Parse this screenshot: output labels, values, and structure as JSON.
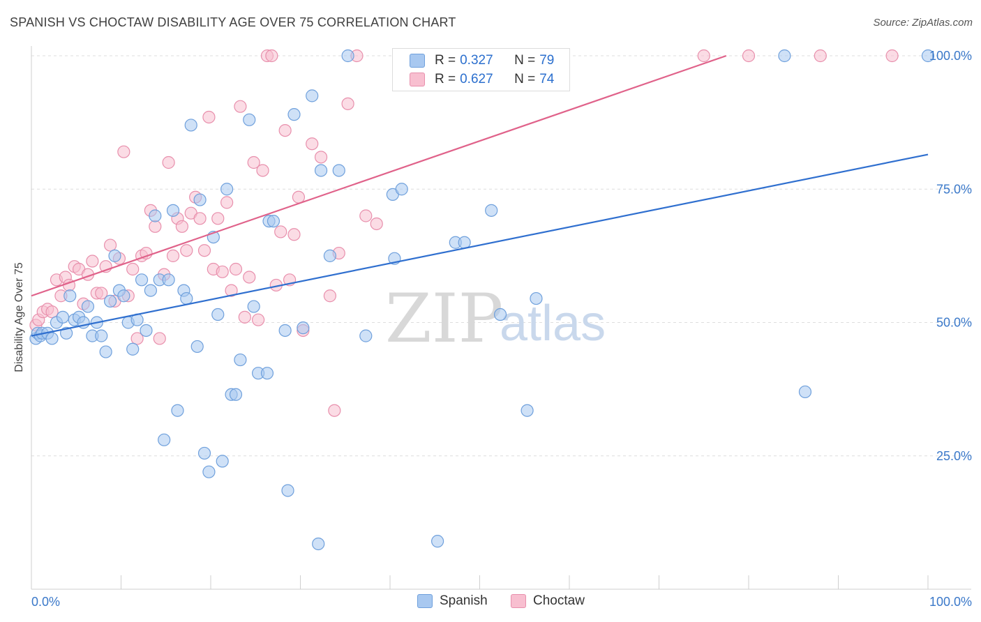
{
  "header": {
    "title": "SPANISH VS CHOCTAW DISABILITY AGE OVER 75 CORRELATION CHART",
    "source": "Source: ZipAtlas.com"
  },
  "watermark": {
    "zip": "ZIP",
    "atlas": "atlas"
  },
  "legend": {
    "rows": [
      {
        "r_label": "R = ",
        "r_value": "0.327",
        "n_label": "N = ",
        "n_value": "79",
        "color": "#a8c8f0",
        "border": "#6fa0dc"
      },
      {
        "r_label": "R = ",
        "r_value": "0.627",
        "n_label": "N = ",
        "n_value": "74",
        "color": "#f8bfd0",
        "border": "#e88fac"
      }
    ]
  },
  "bottom_legend": [
    "Spanish",
    "Choctaw"
  ],
  "colors": {
    "spanish_fill": "#a8c8f0",
    "spanish_stroke": "#6fa0dc",
    "spanish_line": "#2f6fcf",
    "choctaw_fill": "#f8bfd0",
    "choctaw_stroke": "#e88fac",
    "choctaw_line": "#e0628a",
    "tick_text": "#3a78c9"
  },
  "chart_data": {
    "type": "scatter",
    "title": "SPANISH VS CHOCTAW DISABILITY AGE OVER 75 CORRELATION CHART",
    "xlabel": "",
    "ylabel": "Disability Age Over 75",
    "xlim": [
      0,
      100
    ],
    "ylim": [
      0,
      102
    ],
    "x_tick_labels": [
      "0.0%",
      "100.0%"
    ],
    "y_ticks": [
      25,
      50,
      75,
      100
    ],
    "y_tick_labels": [
      "25.0%",
      "50.0%",
      "75.0%",
      "100.0%"
    ],
    "grid": true,
    "legend_position": "top-center",
    "series": [
      {
        "name": "Spanish",
        "r": 0.327,
        "n": 79,
        "trend": {
          "x0": 0,
          "y0": 47.5,
          "x1": 100,
          "y1": 81.5
        },
        "points": [
          [
            0.5,
            47
          ],
          [
            0.7,
            48
          ],
          [
            1.0,
            47.5
          ],
          [
            1.2,
            48
          ],
          [
            1.8,
            48
          ],
          [
            2.3,
            47
          ],
          [
            2.8,
            50
          ],
          [
            3.5,
            51
          ],
          [
            3.9,
            48
          ],
          [
            4.3,
            55
          ],
          [
            4.8,
            50.5
          ],
          [
            5.3,
            51
          ],
          [
            5.8,
            50
          ],
          [
            6.3,
            53
          ],
          [
            6.8,
            47.5
          ],
          [
            7.3,
            50
          ],
          [
            7.8,
            47.5
          ],
          [
            8.3,
            44.5
          ],
          [
            8.8,
            54
          ],
          [
            9.3,
            62.5
          ],
          [
            9.8,
            56
          ],
          [
            10.3,
            55
          ],
          [
            10.8,
            50
          ],
          [
            11.3,
            45
          ],
          [
            11.8,
            50.5
          ],
          [
            12.3,
            58
          ],
          [
            12.8,
            48.5
          ],
          [
            13.3,
            56
          ],
          [
            13.8,
            70
          ],
          [
            14.3,
            58
          ],
          [
            14.8,
            28
          ],
          [
            15.3,
            58
          ],
          [
            15.8,
            71
          ],
          [
            16.3,
            33.5
          ],
          [
            17.0,
            56
          ],
          [
            17.3,
            54.5
          ],
          [
            17.8,
            87
          ],
          [
            18.5,
            45.5
          ],
          [
            18.8,
            73
          ],
          [
            19.3,
            25.5
          ],
          [
            19.8,
            22
          ],
          [
            20.3,
            66
          ],
          [
            20.8,
            51.5
          ],
          [
            21.3,
            24
          ],
          [
            21.8,
            75
          ],
          [
            22.3,
            36.5
          ],
          [
            22.8,
            36.5
          ],
          [
            23.3,
            43
          ],
          [
            24.3,
            88
          ],
          [
            24.8,
            53
          ],
          [
            25.3,
            40.5
          ],
          [
            26.3,
            40.5
          ],
          [
            26.5,
            69
          ],
          [
            27.0,
            69
          ],
          [
            28.3,
            48.5
          ],
          [
            28.6,
            18.5
          ],
          [
            29.3,
            89
          ],
          [
            30.3,
            49
          ],
          [
            31.3,
            92.5
          ],
          [
            32.0,
            8.5
          ],
          [
            32.3,
            78.5
          ],
          [
            33.3,
            62.5
          ],
          [
            34.3,
            78.5
          ],
          [
            35.3,
            100
          ],
          [
            37.3,
            47.5
          ],
          [
            40.3,
            74
          ],
          [
            40.5,
            62
          ],
          [
            41.3,
            75
          ],
          [
            42.3,
            100
          ],
          [
            45.3,
            9
          ],
          [
            47.3,
            65
          ],
          [
            48.3,
            65
          ],
          [
            51.3,
            71
          ],
          [
            52.3,
            51.5
          ],
          [
            55.3,
            33.5
          ],
          [
            56.3,
            54.5
          ],
          [
            84.0,
            100
          ],
          [
            86.3,
            37
          ],
          [
            100,
            100
          ]
        ]
      },
      {
        "name": "Choctaw",
        "r": 0.627,
        "n": 74,
        "trend": {
          "x0": 0,
          "y0": 55,
          "x1": 77.5,
          "y1": 100
        },
        "points": [
          [
            0.5,
            49.5
          ],
          [
            0.8,
            50.5
          ],
          [
            1.3,
            52
          ],
          [
            1.8,
            52.5
          ],
          [
            2.3,
            52
          ],
          [
            2.8,
            58
          ],
          [
            3.3,
            55
          ],
          [
            3.8,
            58.5
          ],
          [
            4.2,
            57
          ],
          [
            4.8,
            60.5
          ],
          [
            5.3,
            60
          ],
          [
            5.8,
            53.5
          ],
          [
            6.3,
            59
          ],
          [
            6.8,
            61.5
          ],
          [
            7.3,
            55.5
          ],
          [
            7.8,
            55.5
          ],
          [
            8.3,
            60.5
          ],
          [
            8.8,
            64.5
          ],
          [
            9.3,
            54
          ],
          [
            9.8,
            62
          ],
          [
            10.3,
            82
          ],
          [
            10.8,
            55
          ],
          [
            11.3,
            60
          ],
          [
            11.8,
            47
          ],
          [
            12.3,
            62.5
          ],
          [
            12.8,
            63
          ],
          [
            13.3,
            71
          ],
          [
            13.8,
            68
          ],
          [
            14.3,
            47
          ],
          [
            14.8,
            59
          ],
          [
            15.3,
            80
          ],
          [
            15.8,
            62.5
          ],
          [
            16.3,
            69.5
          ],
          [
            16.8,
            68
          ],
          [
            17.3,
            63.5
          ],
          [
            17.8,
            70.5
          ],
          [
            18.3,
            73.5
          ],
          [
            18.8,
            69.5
          ],
          [
            19.3,
            63.5
          ],
          [
            19.8,
            88.5
          ],
          [
            20.3,
            60
          ],
          [
            20.8,
            69.5
          ],
          [
            21.3,
            59.5
          ],
          [
            21.8,
            72.5
          ],
          [
            22.3,
            56
          ],
          [
            22.8,
            60
          ],
          [
            23.3,
            90.5
          ],
          [
            23.8,
            51
          ],
          [
            24.3,
            58.5
          ],
          [
            24.8,
            80
          ],
          [
            25.3,
            50.5
          ],
          [
            25.8,
            78.5
          ],
          [
            26.3,
            100
          ],
          [
            26.8,
            100
          ],
          [
            27.3,
            57
          ],
          [
            27.8,
            67
          ],
          [
            28.3,
            86
          ],
          [
            28.8,
            58
          ],
          [
            29.3,
            66.5
          ],
          [
            29.8,
            73.5
          ],
          [
            30.3,
            48.5
          ],
          [
            31.3,
            83.5
          ],
          [
            32.3,
            81
          ],
          [
            33.3,
            55
          ],
          [
            33.8,
            33.5
          ],
          [
            34.3,
            63
          ],
          [
            35.3,
            91
          ],
          [
            36.3,
            100
          ],
          [
            37.3,
            70
          ],
          [
            38.5,
            68.5
          ],
          [
            75.0,
            100
          ],
          [
            80.0,
            100
          ],
          [
            88.0,
            100
          ],
          [
            96.0,
            100
          ]
        ]
      }
    ]
  }
}
